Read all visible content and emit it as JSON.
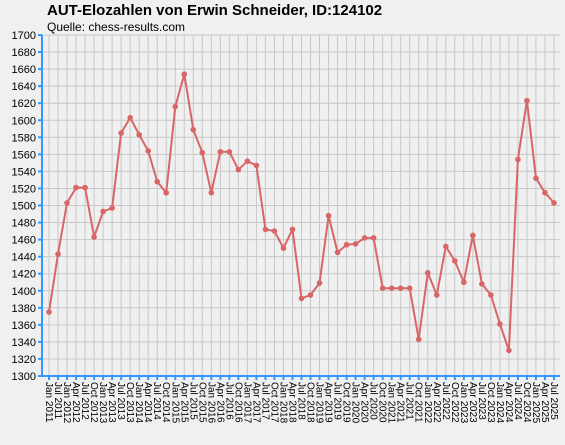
{
  "title": "AUT-Elozahlen von Erwin Schneider, ID:124102",
  "subtitle": "Quelle: chess-results.com",
  "colors": {
    "line": "#d96666",
    "axis": "#3399ff",
    "grid": "#c8c8c8",
    "background": "#f0f0f0"
  },
  "chart_data": {
    "type": "line",
    "title": "AUT-Elozahlen von Erwin Schneider, ID:124102",
    "subtitle": "Quelle: chess-results.com",
    "xlabel": "",
    "ylabel": "",
    "ylim": [
      1300,
      1700
    ],
    "ytick_step": 20,
    "grid": true,
    "x_tick_labels": [
      "Jan 2011",
      "Jul 2011",
      "Jan 2012",
      "Apr 2012",
      "Jul 2012",
      "Oct 2012",
      "Jan 2013",
      "Apr 2013",
      "Jul 2013",
      "Oct 2013",
      "Jan 2014",
      "Apr 2014",
      "Jul 2014",
      "Oct 2014",
      "Jan 2015",
      "Apr 2015",
      "Jul 2015",
      "Oct 2015",
      "Jan 2016",
      "Apr 2016",
      "Jul 2016",
      "Oct 2016",
      "Jan 2017",
      "Apr 2017",
      "Jul 2017",
      "Oct 2017",
      "Jan 2018",
      "Apr 2018",
      "Jul 2018",
      "Oct 2018",
      "Jan 2019",
      "Apr 2019",
      "Jul 2019",
      "Oct 2019",
      "Jan 2020",
      "Apr 2020",
      "Jul 2020",
      "Oct 2020",
      "Jan 2021",
      "Apr 2021",
      "Jul 2021",
      "Oct 2021",
      "Jan 2022",
      "Apr 2022",
      "Jul 2022",
      "Oct 2022",
      "Jan 2023",
      "Apr 2023",
      "Jul 2023",
      "Oct 2023",
      "Jan 2024",
      "Apr 2024",
      "Jul 2024",
      "Oct 2024",
      "Jan 2025",
      "Apr 2025",
      "Jul 2025"
    ],
    "series": [
      {
        "values": [
          1375,
          1443,
          1503,
          1521,
          1521,
          1463,
          1493,
          1497,
          1585,
          1603,
          1583,
          1564,
          1528,
          1515,
          1616,
          1654,
          1589,
          1562,
          1515,
          1563,
          1563,
          1542,
          1552,
          1547,
          1472,
          1470,
          1450,
          1472,
          1391,
          1395,
          1409,
          1488,
          1445,
          1454,
          1455,
          1462,
          1462,
          1403,
          1403,
          1403,
          1403,
          1343,
          1421,
          1395,
          1452,
          1435,
          1410,
          1465,
          1408,
          1395,
          1361,
          1330,
          1554,
          1623,
          1532,
          1515,
          1503
        ]
      }
    ]
  }
}
